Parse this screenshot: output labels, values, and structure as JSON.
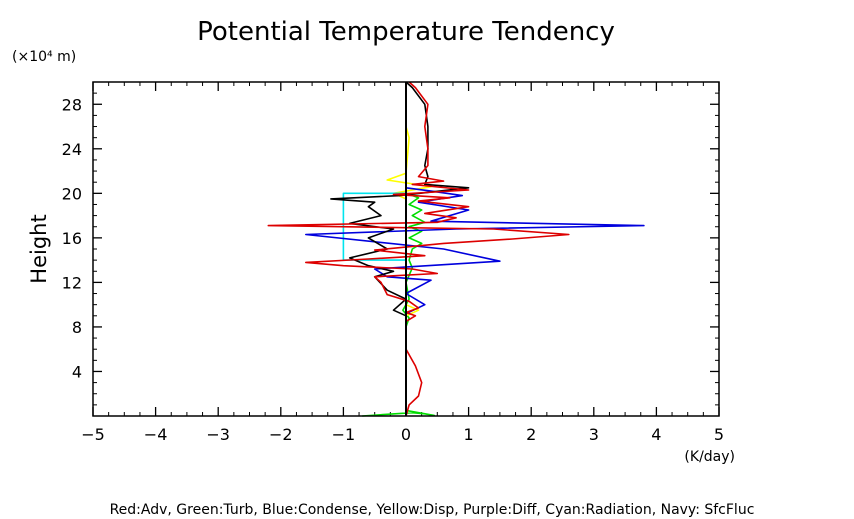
{
  "chart_data": {
    "type": "line",
    "title": "Potential Temperature Tendency",
    "ylabel": "Height",
    "y_unit": "(×10⁴ m)",
    "x_unit": "(K/day)",
    "xlim": [
      -5,
      5
    ],
    "ylim": [
      0,
      30
    ],
    "x_ticks": [
      {
        "value": -5,
        "label": "−5"
      },
      {
        "value": -4,
        "label": "−4"
      },
      {
        "value": -3,
        "label": "−3"
      },
      {
        "value": -2,
        "label": "−2"
      },
      {
        "value": -1,
        "label": "−1"
      },
      {
        "value": 0,
        "label": "0"
      },
      {
        "value": 1,
        "label": "1"
      },
      {
        "value": 2,
        "label": "2"
      },
      {
        "value": 3,
        "label": "3"
      },
      {
        "value": 4,
        "label": "4"
      },
      {
        "value": 5,
        "label": "5"
      }
    ],
    "y_ticks": [
      {
        "value": 4,
        "label": "4"
      },
      {
        "value": 8,
        "label": "8"
      },
      {
        "value": 12,
        "label": "12"
      },
      {
        "value": 16,
        "label": "16"
      },
      {
        "value": 20,
        "label": "20"
      },
      {
        "value": 24,
        "label": "24"
      },
      {
        "value": 28,
        "label": "28"
      }
    ],
    "grid": false,
    "legend_note": "Red:Adv, Green:Turb, Blue:Condense, Yellow:Disp, Purple:Diff, Cyan:Radiation, Navy: SfcFluc",
    "series": [
      {
        "key": "turb",
        "color": "#00dd00",
        "points": [
          [
            -0.7,
            0.0
          ],
          [
            -0.3,
            0.15
          ],
          [
            0.1,
            0.3
          ],
          [
            0.3,
            0.2
          ],
          [
            0.45,
            0.05
          ],
          [
            0.0,
            0.5
          ],
          [
            0.0,
            8.0
          ],
          [
            0.05,
            8.8
          ],
          [
            -0.05,
            9.5
          ],
          [
            0.05,
            10.5
          ],
          [
            0.0,
            12.0
          ],
          [
            0.1,
            13.3
          ],
          [
            0.05,
            14.0
          ],
          [
            0.1,
            15.0
          ],
          [
            0.25,
            15.5
          ],
          [
            0.05,
            16.0
          ],
          [
            0.25,
            16.6
          ],
          [
            0.05,
            17.0
          ],
          [
            0.3,
            17.4
          ],
          [
            0.1,
            18.0
          ],
          [
            0.25,
            18.5
          ],
          [
            0.05,
            19.0
          ],
          [
            0.2,
            19.6
          ],
          [
            0.0,
            20.0
          ],
          [
            0.0,
            30.0
          ]
        ]
      },
      {
        "key": "disp",
        "color": "#ffff00",
        "points": [
          [
            0.0,
            0.0
          ],
          [
            0.0,
            9.0
          ],
          [
            0.2,
            9.5
          ],
          [
            0.0,
            10.0
          ],
          [
            0.0,
            19.5
          ],
          [
            -0.2,
            20.0
          ],
          [
            0.4,
            20.6
          ],
          [
            -0.3,
            21.2
          ],
          [
            0.0,
            21.8
          ],
          [
            0.05,
            25.0
          ],
          [
            0.0,
            26.0
          ],
          [
            0.0,
            30.0
          ]
        ]
      },
      {
        "key": "radiation",
        "color": "#00e5ee",
        "points": [
          [
            0.0,
            14.0
          ],
          [
            -1.0,
            14.0
          ],
          [
            -1.0,
            20.0
          ],
          [
            0.0,
            20.0
          ]
        ]
      },
      {
        "key": "condense",
        "color": "#0000dd",
        "points": [
          [
            0.0,
            0.0
          ],
          [
            0.0,
            9.2
          ],
          [
            0.3,
            10.0
          ],
          [
            0.0,
            11.0
          ],
          [
            0.4,
            12.2
          ],
          [
            -0.3,
            12.5
          ],
          [
            -0.5,
            13.2
          ],
          [
            1.5,
            13.9
          ],
          [
            0.6,
            15.0
          ],
          [
            -1.6,
            16.3
          ],
          [
            0.8,
            16.8
          ],
          [
            3.8,
            17.1
          ],
          [
            0.4,
            17.5
          ],
          [
            1.0,
            18.5
          ],
          [
            0.2,
            19.2
          ],
          [
            0.9,
            19.8
          ],
          [
            0.4,
            20.2
          ],
          [
            0.0,
            20.5
          ],
          [
            0.0,
            30.0
          ]
        ]
      },
      {
        "key": "total",
        "color": "#000000",
        "points": [
          [
            0.0,
            0.0
          ],
          [
            0.0,
            9.0
          ],
          [
            -0.2,
            9.5
          ],
          [
            0.0,
            10.5
          ],
          [
            -0.3,
            11.3
          ],
          [
            -0.5,
            12.5
          ],
          [
            -0.2,
            13.0
          ],
          [
            -0.6,
            13.5
          ],
          [
            -0.9,
            14.2
          ],
          [
            -0.3,
            15.0
          ],
          [
            -0.6,
            16.0
          ],
          [
            -0.2,
            16.8
          ],
          [
            -0.9,
            17.3
          ],
          [
            -0.4,
            18.0
          ],
          [
            -0.6,
            18.8
          ],
          [
            -0.5,
            19.2
          ],
          [
            -1.2,
            19.5
          ],
          [
            -0.1,
            19.8
          ],
          [
            1.0,
            20.5
          ],
          [
            0.3,
            20.8
          ],
          [
            0.35,
            21.5
          ],
          [
            0.3,
            22.5
          ],
          [
            0.35,
            24.0
          ],
          [
            0.35,
            26.0
          ],
          [
            0.3,
            28.0
          ],
          [
            0.1,
            29.5
          ],
          [
            0.0,
            30.0
          ]
        ]
      },
      {
        "key": "adv",
        "color": "#dd0000",
        "points": [
          [
            0.0,
            0.0
          ],
          [
            0.05,
            1.0
          ],
          [
            0.2,
            1.8
          ],
          [
            0.25,
            3.0
          ],
          [
            0.15,
            4.5
          ],
          [
            0.0,
            6.0
          ],
          [
            0.0,
            8.5
          ],
          [
            0.15,
            9.0
          ],
          [
            0.0,
            9.3
          ],
          [
            0.2,
            9.7
          ],
          [
            0.05,
            10.3
          ],
          [
            -0.3,
            10.9
          ],
          [
            -0.4,
            12.0
          ],
          [
            -0.5,
            12.5
          ],
          [
            0.5,
            12.8
          ],
          [
            0.1,
            13.2
          ],
          [
            -1.0,
            13.5
          ],
          [
            -1.6,
            13.8
          ],
          [
            -0.6,
            14.1
          ],
          [
            0.3,
            14.4
          ],
          [
            -0.5,
            14.9
          ],
          [
            0.6,
            15.5
          ],
          [
            1.7,
            15.9
          ],
          [
            2.6,
            16.3
          ],
          [
            1.4,
            16.8
          ],
          [
            -2.2,
            17.1
          ],
          [
            0.5,
            17.4
          ],
          [
            0.8,
            17.8
          ],
          [
            0.3,
            18.2
          ],
          [
            1.0,
            18.8
          ],
          [
            0.2,
            19.3
          ],
          [
            0.7,
            19.6
          ],
          [
            -0.2,
            19.9
          ],
          [
            1.0,
            20.3
          ],
          [
            0.1,
            20.8
          ],
          [
            0.6,
            21.1
          ],
          [
            0.2,
            21.5
          ],
          [
            0.35,
            22.5
          ],
          [
            0.35,
            24.0
          ],
          [
            0.3,
            26.0
          ],
          [
            0.35,
            28.0
          ],
          [
            0.15,
            29.5
          ],
          [
            0.05,
            30.0
          ]
        ]
      }
    ]
  }
}
